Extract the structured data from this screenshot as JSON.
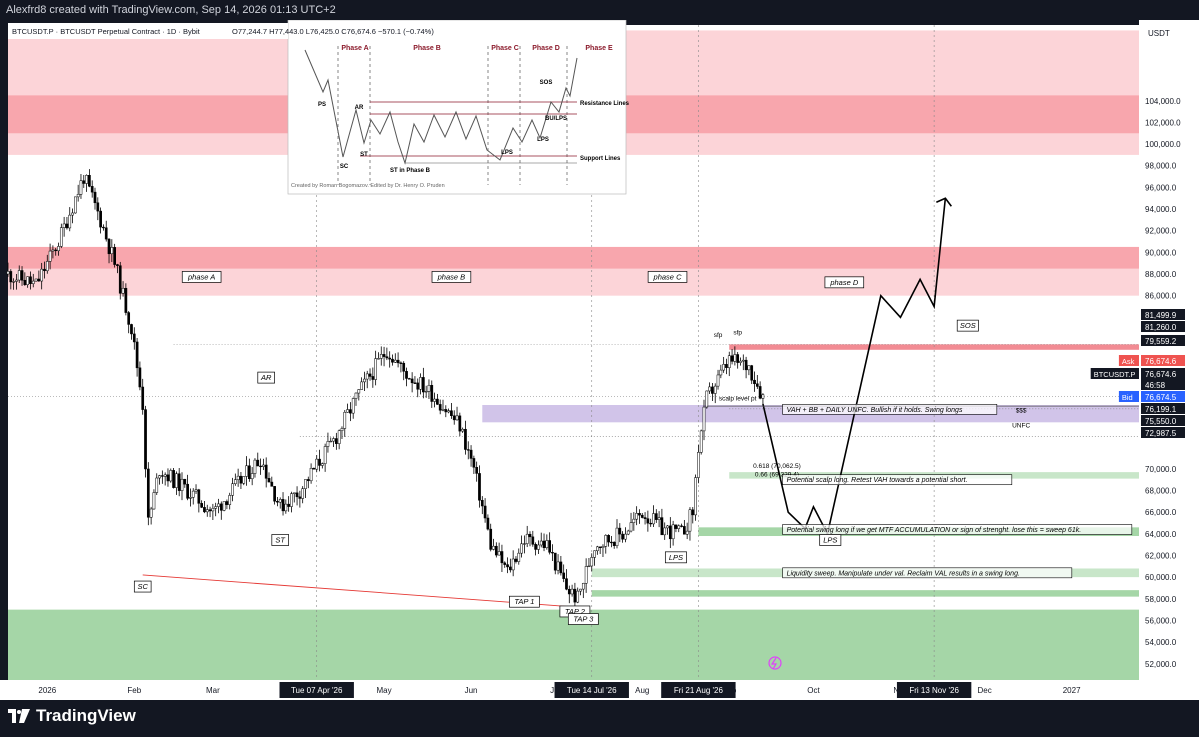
{
  "header": {
    "credit": "Alexfrd8 created with TradingView.com, Sep 14, 2026 01:13 UTC+2"
  },
  "footer": {
    "logo": "TradingView"
  },
  "legend": {
    "symbol": "BTCUSDT.P · BTCUSDT Perpetual Contract · 1D · Bybit",
    "ohlc": "O77,244.7  H77,443.0  L76,425.0  C76,674.6  −570.1 (−0.74%)"
  },
  "colors": {
    "up": "#ffffff",
    "down": "#000000",
    "resistance": "#f8a6ad",
    "support": "#a5d6a7",
    "value_area": "#d1c4e9",
    "ask": "#ef5350",
    "bid": "#2962ff"
  },
  "chart_data": {
    "type": "candlestick",
    "currency_label": "USDT",
    "ylim": [
      50500,
      111000
    ],
    "y_ticks": [
      52000,
      54000,
      56000,
      58000,
      60000,
      62000,
      64000,
      66000,
      68000,
      70000,
      72000,
      74000,
      76000,
      78000,
      80000,
      82000,
      84000,
      86000,
      88000,
      90000,
      92000,
      94000,
      96000,
      98000,
      100000,
      102000,
      104000
    ],
    "y_tick_labels": [
      "52,000.0",
      "54,000.0",
      "56,000.0",
      "58,000.0",
      "60,000.0",
      "62,000.0",
      "64,000.0",
      "66,000.0",
      "68,000.0",
      "70,000.0",
      "72,000.0",
      "74,000.0",
      "76,000.0",
      "78,000.0",
      "80,000.0",
      "82,000.0",
      "84,000.0",
      "86,000.0",
      "88,000.0",
      "90,000.0",
      "92,000.0",
      "94,000.0",
      "96,000.0",
      "98,000.0",
      "100,000.0",
      "102,000.0",
      "104,000.0"
    ],
    "x_range": [
      "2025-12-18",
      "2027-01-25"
    ],
    "x_labels": [
      {
        "date": "2026-01-01",
        "label": "2026"
      },
      {
        "date": "2026-02-01",
        "label": "Feb"
      },
      {
        "date": "2026-03-01",
        "label": "Mar"
      },
      {
        "date": "2026-05-01",
        "label": "May"
      },
      {
        "date": "2026-06-01",
        "label": "Jun"
      },
      {
        "date": "2026-07-01",
        "label": "Jul"
      },
      {
        "date": "2026-08-01",
        "label": "Aug"
      },
      {
        "date": "2026-09-01",
        "label": "Sep"
      },
      {
        "date": "2026-10-01",
        "label": "Oct"
      },
      {
        "date": "2026-11-01",
        "label": "Nov"
      },
      {
        "date": "2026-12-01",
        "label": "Dec"
      },
      {
        "date": "2027-01-01",
        "label": "2027"
      }
    ],
    "x_highlight": [
      {
        "date": "2026-04-07",
        "label": "Tue 07 Apr '26"
      },
      {
        "date": "2026-07-14",
        "label": "Tue 14 Jul '26"
      },
      {
        "date": "2026-08-21",
        "label": "Fri 21 Aug '26"
      },
      {
        "date": "2026-11-13",
        "label": "Fri 13 Nov '26"
      }
    ],
    "price_path": [
      [
        "2025-12-18",
        88000
      ],
      [
        "2025-12-28",
        87000
      ],
      [
        "2026-01-05",
        91000
      ],
      [
        "2026-01-14",
        97000
      ],
      [
        "2026-01-20",
        93000
      ],
      [
        "2026-01-25",
        89000
      ],
      [
        "2026-01-31",
        83000
      ],
      [
        "2026-02-04",
        76000
      ],
      [
        "2026-02-06",
        65000
      ],
      [
        "2026-02-10",
        70000
      ],
      [
        "2026-02-20",
        68000
      ],
      [
        "2026-03-01",
        66000
      ],
      [
        "2026-03-08",
        68000
      ],
      [
        "2026-03-18",
        71000
      ],
      [
        "2026-03-25",
        66500
      ],
      [
        "2026-04-01",
        68000
      ],
      [
        "2026-04-14",
        73000
      ],
      [
        "2026-04-22",
        77000
      ],
      [
        "2026-05-02",
        81000
      ],
      [
        "2026-05-08",
        79000
      ],
      [
        "2026-05-18",
        77000
      ],
      [
        "2026-05-28",
        74000
      ],
      [
        "2026-06-02",
        70000
      ],
      [
        "2026-06-08",
        63000
      ],
      [
        "2026-06-14",
        60500
      ],
      [
        "2026-06-20",
        63500
      ],
      [
        "2026-06-28",
        63000
      ],
      [
        "2026-07-05",
        59000
      ],
      [
        "2026-07-09",
        58000
      ],
      [
        "2026-07-15",
        63000
      ],
      [
        "2026-07-25",
        64000
      ],
      [
        "2026-08-01",
        66000
      ],
      [
        "2026-08-08",
        64500
      ],
      [
        "2026-08-15",
        64000
      ],
      [
        "2026-08-19",
        66000
      ],
      [
        "2026-08-21",
        72000
      ],
      [
        "2026-08-24",
        76500
      ],
      [
        "2026-09-01",
        80000
      ],
      [
        "2026-09-08",
        79500
      ],
      [
        "2026-09-13",
        76675
      ]
    ],
    "projection": [
      [
        "2026-09-13",
        76000
      ],
      [
        "2026-09-22",
        66000
      ],
      [
        "2026-09-28",
        64500
      ],
      [
        "2026-10-01",
        66500
      ],
      [
        "2026-10-06",
        64000
      ],
      [
        "2026-10-25",
        86000
      ],
      [
        "2026-11-01",
        84000
      ],
      [
        "2026-11-08",
        87500
      ],
      [
        "2026-11-13",
        85000
      ],
      [
        "2026-11-17",
        95000
      ]
    ],
    "zones": [
      {
        "name": "resistance",
        "from": 99000,
        "to": 110500,
        "color": "#fcd4d8"
      },
      {
        "name": "resistance-core",
        "from": 101000,
        "to": 104500,
        "color": "#f8a6ad"
      },
      {
        "name": "supply",
        "from": 86000,
        "to": 90500,
        "color": "#fcd4d8"
      },
      {
        "name": "supply-core",
        "from": 88500,
        "to": 90500,
        "color": "#f8a6ad"
      },
      {
        "name": "value-area",
        "from": 74300,
        "to": 75900,
        "color": "#d1c4e9",
        "start": "2026-06-05"
      },
      {
        "name": "demand",
        "from": 50000,
        "to": 57000,
        "color": "#a5d6a7"
      }
    ],
    "price_labels": [
      {
        "value": 81499.9,
        "text": "81,499.9",
        "style": "dark"
      },
      {
        "value": 81260.0,
        "text": "81,260.0",
        "style": "dark"
      },
      {
        "value": 79559.2,
        "text": "79,559.2",
        "style": "dark"
      },
      {
        "value": 76674.6,
        "text": "76,674.6",
        "style": "ask",
        "tag": "Ask"
      },
      {
        "value": 76674.6,
        "text": "76,674.6",
        "style": "dark",
        "tag": "BTCUSDT.P"
      },
      {
        "value": 76674.6,
        "text": "46:58",
        "style": "dark"
      },
      {
        "value": 76674.5,
        "text": "76,674.5",
        "style": "bid",
        "tag": "Bid"
      },
      {
        "value": 76199.1,
        "text": "76,199.1",
        "style": "dark"
      },
      {
        "value": 75550.0,
        "text": "75,550.0",
        "style": "dark"
      },
      {
        "value": 72987.5,
        "text": "72,987.5",
        "style": "dark"
      }
    ],
    "annotations": [
      {
        "text": "phase A",
        "date": "2026-02-25",
        "value": 87500
      },
      {
        "text": "phase B",
        "date": "2026-05-25",
        "value": 87500
      },
      {
        "text": "phase C",
        "date": "2026-08-10",
        "value": 87500
      },
      {
        "text": "phase D",
        "date": "2026-10-12",
        "value": 87000
      },
      {
        "text": "SOS",
        "date": "2026-11-25",
        "value": 83000
      },
      {
        "text": "AR",
        "date": "2026-03-20",
        "value": 78200
      },
      {
        "text": "ST",
        "date": "2026-03-25",
        "value": 63200
      },
      {
        "text": "SC",
        "date": "2026-02-04",
        "value": 58900
      },
      {
        "text": "TAP 1",
        "date": "2026-06-20",
        "value": 57500
      },
      {
        "text": "TAP 2",
        "date": "2026-07-08",
        "value": 56600
      },
      {
        "text": "TAP 3",
        "date": "2026-07-11",
        "value": 55900
      },
      {
        "text": "LPS",
        "date": "2026-08-13",
        "value": 61600
      },
      {
        "text": "LPS",
        "date": "2026-10-07",
        "value": 63200
      },
      {
        "text": "sfp",
        "date": "2026-08-28",
        "value": 82200
      },
      {
        "text": "sfp",
        "date": "2026-09-04",
        "value": 82400
      },
      {
        "text": "$$$",
        "date": "2026-12-14",
        "value": 75200
      },
      {
        "text": "UNFC",
        "date": "2026-12-14",
        "value": 73800
      },
      {
        "text": "scalp level pt",
        "date": "2026-09-04",
        "value": 76300
      },
      {
        "text": "0.618 (70,062.5)",
        "date": "2026-09-18",
        "value": 70100
      },
      {
        "text": "0.66 (69,329.4)",
        "date": "2026-09-18",
        "value": 69300
      }
    ],
    "notes": [
      {
        "text": "VAH + BB + DAILY UNFC. Bullish if it holds. Swing longs",
        "date": "2026-09-20",
        "value": 75500
      },
      {
        "text": "Potential scalp long. Retest VAH towards a potential short.",
        "date": "2026-09-20",
        "value": 69000
      },
      {
        "text": "Potential swing long if we get MTF ACCUMULATION or sign of strenght. lose this = sweep 61k.",
        "date": "2026-09-20",
        "value": 64400
      },
      {
        "text": "Liquidity sweep. Manipulate under val. Reclaim VAL results in a swing long.",
        "date": "2026-09-20",
        "value": 60400
      }
    ]
  },
  "inset": {
    "phases": [
      "Phase A",
      "Phase B",
      "Phase C",
      "Phase D",
      "Phase E"
    ],
    "labels": [
      "PS",
      "SC",
      "AR",
      "ST",
      "ST in Phase B",
      "LPS",
      "BU/LPS",
      "LPS",
      "SOS",
      "Resistance Lines",
      "Support Lines"
    ],
    "credit": "Created by Roman Bogomazov. Edited by Dr. Henry O. Pruden"
  }
}
